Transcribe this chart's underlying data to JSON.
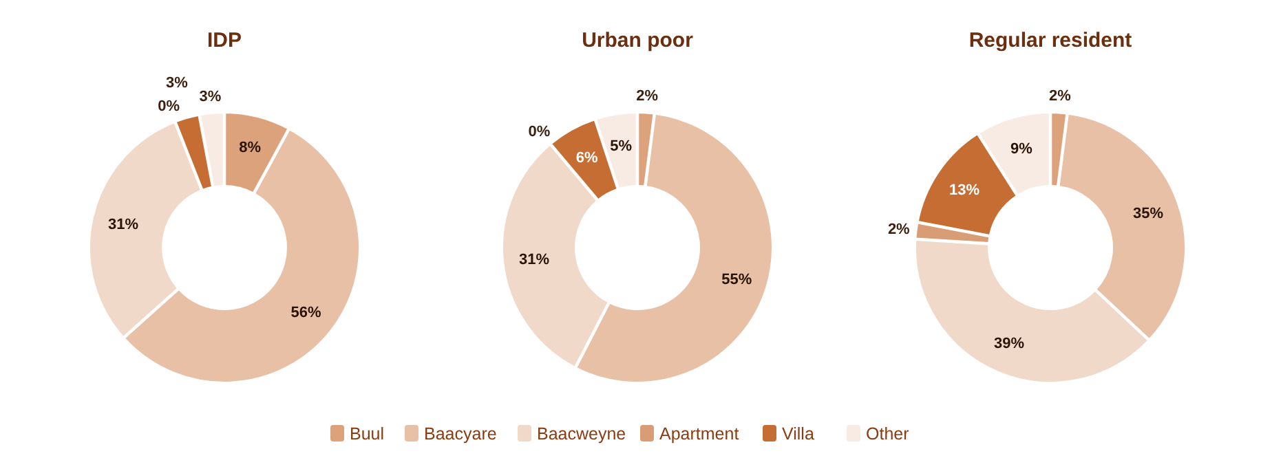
{
  "chart_data": [
    {
      "type": "donut",
      "title": "IDP",
      "categories": [
        "Buul",
        "Baacyare",
        "Baacweyne",
        "Apartment",
        "Villa",
        "Other"
      ],
      "values": [
        8,
        56,
        31,
        0,
        3,
        3
      ],
      "value_labels": [
        "8%",
        "56%",
        "31%",
        "0%",
        "3%",
        "3%"
      ],
      "colors": [
        "#dca27b",
        "#e8c0a6",
        "#f0d9c9",
        "#d99d76",
        "#c56d33",
        "#f7ebe3"
      ],
      "legend": "bottom"
    },
    {
      "type": "donut",
      "title": "Urban poor",
      "categories": [
        null,
        null,
        null,
        null,
        null,
        null
      ],
      "values": [
        2,
        55,
        31,
        0,
        6,
        5
      ],
      "value_labels": [
        "2%",
        "55%",
        "31%",
        "0%",
        "6%",
        "5%"
      ],
      "colors": [
        "#dca27b",
        "#e8c0a6",
        "#f0d9c9",
        "#d99d76",
        "#c56d33",
        "#f7ebe3"
      ]
    },
    {
      "type": "donut",
      "title": "Regular resident",
      "categories": [
        null,
        null,
        null,
        null,
        null,
        null
      ],
      "values": [
        2,
        35,
        39,
        2,
        13,
        9
      ],
      "value_labels": [
        "2%",
        "35%",
        "39%",
        "2%",
        "13%",
        "9%"
      ],
      "colors": [
        "#dca27b",
        "#e8c0a6",
        "#f0d9c9",
        "#d99d76",
        "#c56d33",
        "#f7ebe3"
      ]
    }
  ]
}
